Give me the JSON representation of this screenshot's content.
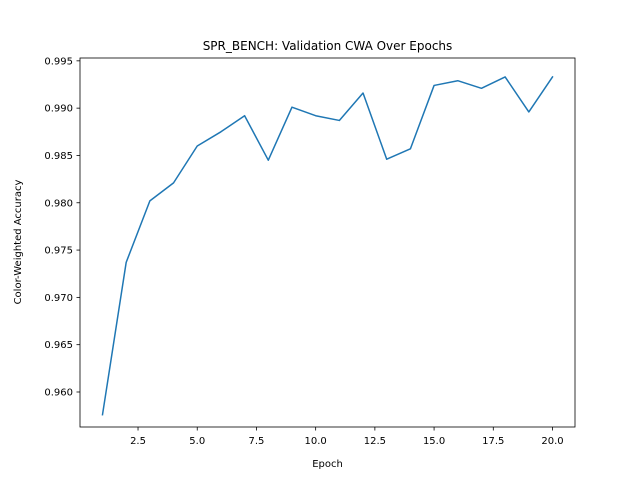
{
  "chart_data": {
    "type": "line",
    "title": "SPR_BENCH: Validation CWA Over Epochs",
    "xlabel": "Epoch",
    "ylabel": "Color-Weighted Accuracy",
    "xlim": [
      0.05,
      20.95
    ],
    "ylim": [
      0.9563,
      0.9953
    ],
    "xticks": [
      "2.5",
      "5.0",
      "7.5",
      "10.0",
      "12.5",
      "15.0",
      "17.5",
      "20.0"
    ],
    "yticks": [
      "0.960",
      "0.965",
      "0.970",
      "0.975",
      "0.980",
      "0.985",
      "0.990",
      "0.995"
    ],
    "grid": false,
    "legend": "none",
    "series": [
      {
        "color": "#1f77b4",
        "x": [
          1,
          2,
          3,
          4,
          5,
          6,
          7,
          8,
          9,
          10,
          11,
          12,
          13,
          14,
          15,
          16,
          17,
          18,
          19,
          20
        ],
        "y": [
          0.9576,
          0.9737,
          0.9802,
          0.9821,
          0.986,
          0.9875,
          0.9892,
          0.9845,
          0.9901,
          0.9892,
          0.9887,
          0.9916,
          0.9846,
          0.9857,
          0.9924,
          0.9929,
          0.9921,
          0.9933,
          0.9896,
          0.9933
        ]
      }
    ]
  }
}
